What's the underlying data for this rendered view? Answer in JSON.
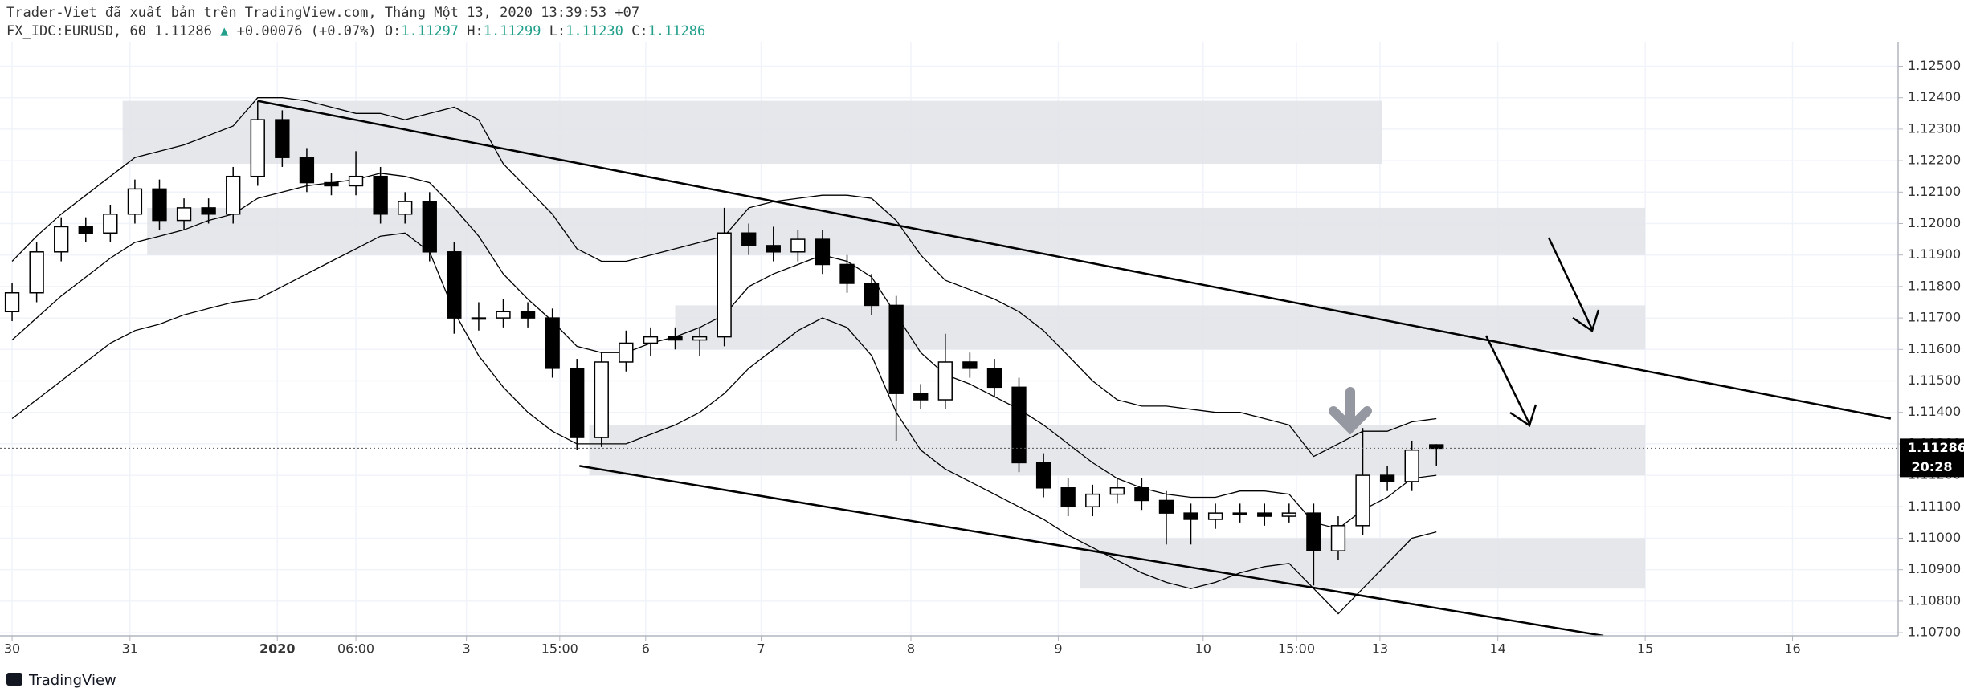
{
  "chart_data": {
    "type": "candlestick",
    "publisher_line": "Trader-Viet đã xuất bản trên TradingView.com, Tháng Một 13, 2020 13:39:53 +07",
    "symbol": "FX_IDC:EURUSD, 60",
    "change_arrow": "▲",
    "change": "+0.00076 (+0.07%)",
    "ohlc_header": {
      "labels": [
        "O:",
        "H:",
        "L:",
        "C:"
      ],
      "values": [
        "1.11297",
        "1.11299",
        "1.11230",
        "1.11286"
      ]
    },
    "countdown": "20:28",
    "brand": "TradingView",
    "xlim": [
      -0.1,
      76.8
    ],
    "ylim": [
      1.1069,
      1.1256
    ],
    "xticks": [
      {
        "value": 0,
        "label": "30"
      },
      {
        "value": 4.8,
        "label": "31"
      },
      {
        "value": 10.8,
        "label": "2020"
      },
      {
        "value": 14,
        "label": "06:00"
      },
      {
        "value": 18.5,
        "label": "3"
      },
      {
        "value": 22.3,
        "label": "15:00"
      },
      {
        "value": 25.8,
        "label": "6"
      },
      {
        "value": 30.5,
        "label": "7"
      },
      {
        "value": 36.6,
        "label": "8"
      },
      {
        "value": 42.6,
        "label": "9"
      },
      {
        "value": 48.5,
        "label": "10"
      },
      {
        "value": 52.3,
        "label": "15:00"
      },
      {
        "value": 55.7,
        "label": "13"
      },
      {
        "value": 60.5,
        "label": "14"
      },
      {
        "value": 66.5,
        "label": "15"
      },
      {
        "value": 72.5,
        "label": "16"
      }
    ],
    "yticks": [
      {
        "value": 1.107,
        "label": "1.10700"
      },
      {
        "value": 1.108,
        "label": "1.10800"
      },
      {
        "value": 1.109,
        "label": "1.10900"
      },
      {
        "value": 1.11,
        "label": "1.11000"
      },
      {
        "value": 1.111,
        "label": "1.11100"
      },
      {
        "value": 1.112,
        "label": "1.11200"
      },
      {
        "value": 1.113,
        "label": "1.11300"
      },
      {
        "value": 1.114,
        "label": "1.11400"
      },
      {
        "value": 1.115,
        "label": "1.11500"
      },
      {
        "value": 1.116,
        "label": "1.11600"
      },
      {
        "value": 1.117,
        "label": "1.11700"
      },
      {
        "value": 1.118,
        "label": "1.11800"
      },
      {
        "value": 1.119,
        "label": "1.11900"
      },
      {
        "value": 1.12,
        "label": "1.12000"
      },
      {
        "value": 1.121,
        "label": "1.12100"
      },
      {
        "value": 1.122,
        "label": "1.12200"
      },
      {
        "value": 1.123,
        "label": "1.12300"
      },
      {
        "value": 1.124,
        "label": "1.12400"
      },
      {
        "value": 1.125,
        "label": "1.12500"
      }
    ],
    "grid": true,
    "up_color": "#ffffff",
    "down_color": "#000000",
    "ohlc": [
      [
        1.1172,
        1.1181,
        1.1169,
        1.1178
      ],
      [
        1.1178,
        1.1194,
        1.1175,
        1.1191
      ],
      [
        1.1191,
        1.1202,
        1.1188,
        1.1199
      ],
      [
        1.1199,
        1.1202,
        1.1194,
        1.1197
      ],
      [
        1.1197,
        1.1206,
        1.1194,
        1.1203
      ],
      [
        1.1203,
        1.1214,
        1.12,
        1.1211
      ],
      [
        1.1211,
        1.1214,
        1.1198,
        1.1201
      ],
      [
        1.1201,
        1.1208,
        1.1198,
        1.1205
      ],
      [
        1.1205,
        1.1208,
        1.12,
        1.1203
      ],
      [
        1.1203,
        1.1218,
        1.12,
        1.1215
      ],
      [
        1.1215,
        1.1239,
        1.1212,
        1.1233
      ],
      [
        1.1233,
        1.1236,
        1.1218,
        1.1221
      ],
      [
        1.1221,
        1.1224,
        1.121,
        1.1213
      ],
      [
        1.1213,
        1.1216,
        1.1209,
        1.1212
      ],
      [
        1.1212,
        1.1223,
        1.1209,
        1.1215
      ],
      [
        1.1215,
        1.1218,
        1.12,
        1.1203
      ],
      [
        1.1203,
        1.121,
        1.12,
        1.1207
      ],
      [
        1.1207,
        1.121,
        1.1188,
        1.1191
      ],
      [
        1.1191,
        1.1194,
        1.1165,
        1.117
      ],
      [
        1.117,
        1.1175,
        1.1166,
        1.117
      ],
      [
        1.117,
        1.1176,
        1.1167,
        1.1172
      ],
      [
        1.1172,
        1.1175,
        1.1167,
        1.117
      ],
      [
        1.117,
        1.1173,
        1.1151,
        1.1154
      ],
      [
        1.1154,
        1.1157,
        1.1128,
        1.1132
      ],
      [
        1.1132,
        1.1159,
        1.1129,
        1.1156
      ],
      [
        1.1156,
        1.1166,
        1.1153,
        1.1162
      ],
      [
        1.1162,
        1.1167,
        1.1158,
        1.1164
      ],
      [
        1.1164,
        1.1167,
        1.116,
        1.1163
      ],
      [
        1.1163,
        1.1167,
        1.1158,
        1.1164
      ],
      [
        1.1164,
        1.1205,
        1.1161,
        1.1197
      ],
      [
        1.1197,
        1.12,
        1.119,
        1.1193
      ],
      [
        1.1193,
        1.1199,
        1.1188,
        1.1191
      ],
      [
        1.1191,
        1.1198,
        1.1188,
        1.1195
      ],
      [
        1.1195,
        1.1198,
        1.1184,
        1.1187
      ],
      [
        1.1187,
        1.119,
        1.1178,
        1.1181
      ],
      [
        1.1181,
        1.1184,
        1.1171,
        1.1174
      ],
      [
        1.1174,
        1.1177,
        1.1131,
        1.1146
      ],
      [
        1.1146,
        1.1149,
        1.1141,
        1.1144
      ],
      [
        1.1144,
        1.1165,
        1.1141,
        1.1156
      ],
      [
        1.1156,
        1.1159,
        1.1151,
        1.1154
      ],
      [
        1.1154,
        1.1157,
        1.1145,
        1.1148
      ],
      [
        1.1148,
        1.1151,
        1.1121,
        1.1124
      ],
      [
        1.1124,
        1.1127,
        1.1113,
        1.1116
      ],
      [
        1.1116,
        1.1119,
        1.1107,
        1.111
      ],
      [
        1.111,
        1.1117,
        1.1107,
        1.1114
      ],
      [
        1.1114,
        1.1119,
        1.1111,
        1.1116
      ],
      [
        1.1116,
        1.1119,
        1.1109,
        1.1112
      ],
      [
        1.1112,
        1.1115,
        1.1098,
        1.1108
      ],
      [
        1.1108,
        1.1111,
        1.1098,
        1.1106
      ],
      [
        1.1106,
        1.1111,
        1.1103,
        1.1108
      ],
      [
        1.1108,
        1.1111,
        1.1105,
        1.1108
      ],
      [
        1.1108,
        1.1111,
        1.1104,
        1.1107
      ],
      [
        1.1107,
        1.1111,
        1.1105,
        1.1108
      ],
      [
        1.1108,
        1.1111,
        1.1085,
        1.1096
      ],
      [
        1.1096,
        1.1107,
        1.1093,
        1.1104
      ],
      [
        1.1104,
        1.1135,
        1.1101,
        1.112
      ],
      [
        1.112,
        1.1123,
        1.1115,
        1.1118
      ],
      [
        1.1118,
        1.1131,
        1.1115,
        1.1128
      ],
      [
        1.11297,
        1.11299,
        1.1123,
        1.11286
      ]
    ],
    "bands": [
      {
        "color": "#000000",
        "values": [
          1.1188,
          1.1196,
          1.1203,
          1.1209,
          1.1215,
          1.1221,
          1.1223,
          1.1225,
          1.1228,
          1.1231,
          1.124,
          1.124,
          1.1239,
          1.1237,
          1.1235,
          1.1235,
          1.1233,
          1.1235,
          1.1237,
          1.1233,
          1.1219,
          1.1211,
          1.1203,
          1.1192,
          1.1188,
          1.1188,
          1.119,
          1.1192,
          1.1194,
          1.1196,
          1.1205,
          1.1207,
          1.1208,
          1.1209,
          1.1209,
          1.1208,
          1.1201,
          1.119,
          1.1182,
          1.1179,
          1.1176,
          1.1172,
          1.1166,
          1.1158,
          1.115,
          1.1144,
          1.1142,
          1.1142,
          1.1141,
          1.114,
          1.114,
          1.1138,
          1.1136,
          1.1126,
          1.113,
          1.1134,
          1.1134,
          1.1137,
          1.1138
        ]
      },
      {
        "color": "#000000",
        "values": [
          1.1163,
          1.117,
          1.1177,
          1.1183,
          1.1189,
          1.1194,
          1.1196,
          1.1198,
          1.1201,
          1.1203,
          1.1208,
          1.121,
          1.1212,
          1.1213,
          1.1214,
          1.1216,
          1.1215,
          1.1213,
          1.1205,
          1.1196,
          1.1184,
          1.1176,
          1.1169,
          1.1161,
          1.1159,
          1.1159,
          1.1162,
          1.1164,
          1.1167,
          1.1171,
          1.118,
          1.1184,
          1.1187,
          1.119,
          1.1188,
          1.1183,
          1.1171,
          1.1159,
          1.1152,
          1.1149,
          1.1145,
          1.1141,
          1.1136,
          1.113,
          1.1124,
          1.1119,
          1.1116,
          1.1114,
          1.1113,
          1.1113,
          1.1115,
          1.1115,
          1.1114,
          1.1105,
          1.1103,
          1.1109,
          1.1113,
          1.1119,
          1.112
        ]
      },
      {
        "color": "#000000",
        "values": [
          1.1138,
          1.1144,
          1.115,
          1.1156,
          1.1162,
          1.1166,
          1.1168,
          1.1171,
          1.1173,
          1.1175,
          1.1176,
          1.118,
          1.1184,
          1.1188,
          1.1192,
          1.1196,
          1.1197,
          1.1191,
          1.1172,
          1.1158,
          1.1148,
          1.114,
          1.1134,
          1.113,
          1.113,
          1.113,
          1.1133,
          1.1136,
          1.114,
          1.1146,
          1.1154,
          1.116,
          1.1166,
          1.117,
          1.1167,
          1.1158,
          1.114,
          1.1128,
          1.1122,
          1.1118,
          1.1114,
          1.111,
          1.1106,
          1.1101,
          1.1097,
          1.1093,
          1.1089,
          1.1086,
          1.1084,
          1.1086,
          1.1089,
          1.1091,
          1.1092,
          1.1084,
          1.1076,
          1.1084,
          1.1092,
          1.11,
          1.1102
        ]
      }
    ],
    "zones": [
      {
        "x1": 4.5,
        "x2": 55.8,
        "y1": 1.1219,
        "y2": 1.1239,
        "color": "#e1e3e8"
      },
      {
        "x1": 5.5,
        "x2": 66.5,
        "y1": 1.119,
        "y2": 1.1205,
        "color": "#e1e3e8"
      },
      {
        "x1": 27,
        "x2": 66.5,
        "y1": 1.116,
        "y2": 1.1174,
        "color": "#e1e3e8"
      },
      {
        "x1": 23.5,
        "x2": 66.5,
        "y1": 1.112,
        "y2": 1.1136,
        "color": "#e1e3e8"
      },
      {
        "x1": 43.5,
        "x2": 66.5,
        "y1": 1.1084,
        "y2": 1.11,
        "color": "#e1e3e8"
      }
    ],
    "trendlines": [
      {
        "x1": 10,
        "y1": 1.1239,
        "x2": 76.5,
        "y2": 1.1138
      },
      {
        "x1": 23.1,
        "y1": 1.1123,
        "x2": 64.8,
        "y2": 1.1069
      }
    ]
  }
}
